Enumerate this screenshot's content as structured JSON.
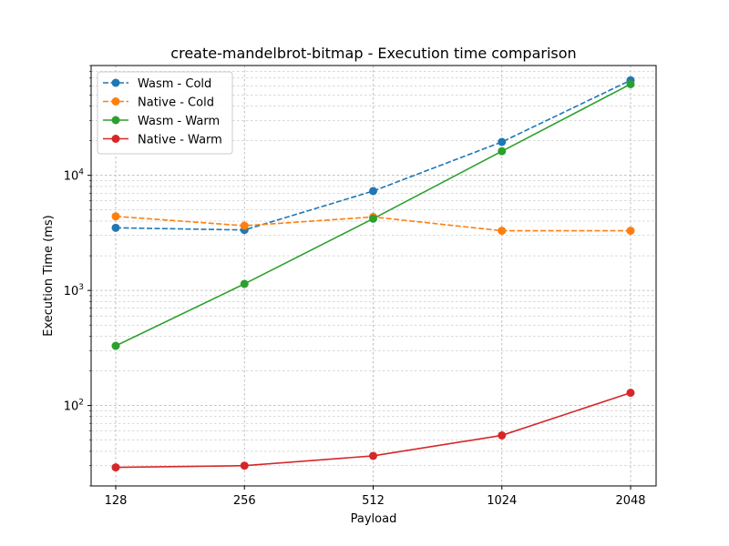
{
  "chart_data": {
    "type": "line",
    "title": "create-mandelbrot-bitmap - Execution time comparison",
    "xlabel": "Payload",
    "ylabel": "Execution Time (ms)",
    "yscale": "log",
    "ylim": [
      20,
      90000
    ],
    "categories": [
      "128",
      "256",
      "512",
      "1024",
      "2048"
    ],
    "y_major_ticks": [
      {
        "value": 100,
        "label": "10^2"
      },
      {
        "value": 1000,
        "label": "10^3"
      },
      {
        "value": 10000,
        "label": "10^4"
      }
    ],
    "grid": true,
    "legend_position": "upper-left",
    "series": [
      {
        "name": "Wasm - Cold",
        "color": "#1f77b4",
        "style": "dashed",
        "values": [
          3500,
          3350,
          7300,
          19500,
          67000
        ]
      },
      {
        "name": "Native - Cold",
        "color": "#ff7f0e",
        "style": "dashed",
        "values": [
          4400,
          3650,
          4350,
          3300,
          3300
        ]
      },
      {
        "name": "Wasm - Warm",
        "color": "#2ca02c",
        "style": "solid",
        "values": [
          330,
          1140,
          4200,
          16200,
          62000
        ]
      },
      {
        "name": "Native - Warm",
        "color": "#d62728",
        "style": "solid",
        "values": [
          29,
          30,
          36.5,
          55,
          129
        ]
      }
    ]
  }
}
